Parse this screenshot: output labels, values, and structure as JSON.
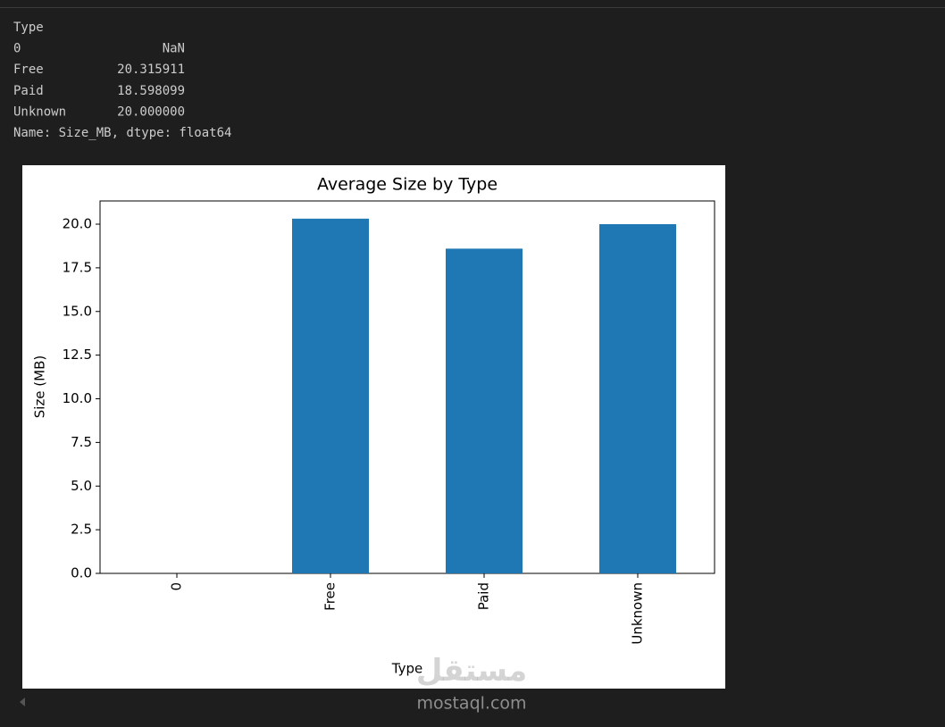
{
  "console": {
    "header": "Type",
    "rows": [
      [
        "0",
        "NaN"
      ],
      [
        "Free",
        "20.315911"
      ],
      [
        "Paid",
        "18.598099"
      ],
      [
        "Unknown",
        "20.000000"
      ]
    ],
    "footer": "Name: Size_MB, dtype: float64"
  },
  "chart_data": {
    "type": "bar",
    "title": "Average Size by Type",
    "x_label": "Type",
    "y_label": "Size (MB)",
    "categories": [
      "0",
      "Free",
      "Paid",
      "Unknown"
    ],
    "values": [
      null,
      20.315911,
      18.598099,
      20.0
    ],
    "color": "#1f77b4",
    "ylim": [
      0,
      21.33
    ],
    "yticks": [
      {
        "value": 0,
        "label": "0.0"
      },
      2.5,
      {
        "value": 5,
        "label": "5.0"
      },
      7.5,
      {
        "value": 10,
        "label": "10.0"
      },
      12.5,
      {
        "value": 15,
        "label": "15.0"
      },
      17.5,
      {
        "value": 20,
        "label": "20.0"
      }
    ]
  },
  "watermark": {
    "arabic": "مستقل",
    "latin": "mostaql.com"
  }
}
